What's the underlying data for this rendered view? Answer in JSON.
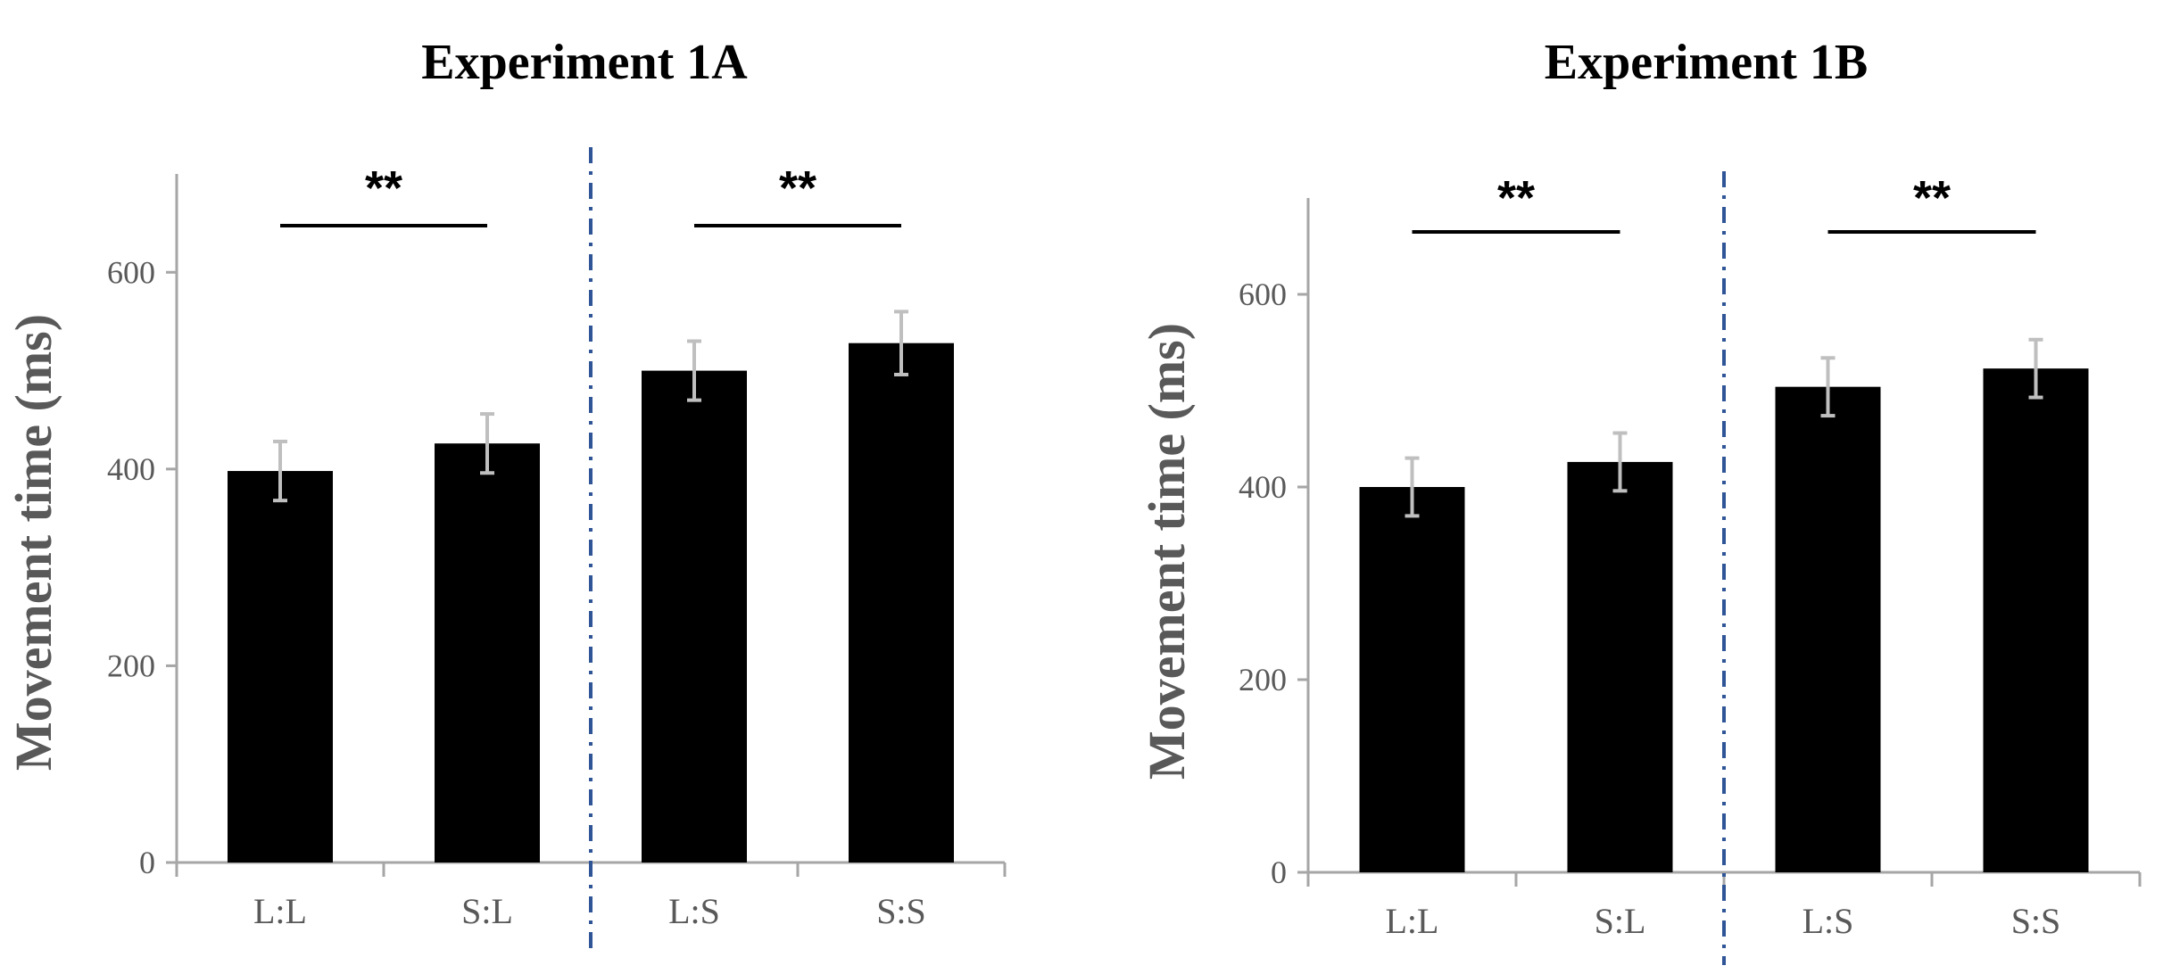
{
  "chart_data": [
    {
      "type": "bar",
      "title": "Experiment 1A",
      "ylabel": "Movement time (ms)",
      "xlabel": "",
      "ylim": [
        0,
        700
      ],
      "yticks": [
        0,
        200,
        400,
        600
      ],
      "categories": [
        "L:L",
        "S:L",
        "L:S",
        "S:S"
      ],
      "values": [
        398,
        426,
        500,
        528
      ],
      "errors": [
        30,
        30,
        30,
        32
      ],
      "bar_color": "#000000",
      "error_color": "#bfbfbf",
      "divider_color": "#2f5597",
      "significance": [
        {
          "from": 0,
          "to": 1,
          "label": "**"
        },
        {
          "from": 2,
          "to": 3,
          "label": "**"
        }
      ]
    },
    {
      "type": "bar",
      "title": "Experiment 1B",
      "ylabel": "Movement time (ms)",
      "xlabel": "",
      "ylim": [
        0,
        700
      ],
      "yticks": [
        0,
        200,
        400,
        600
      ],
      "categories": [
        "L:L",
        "S:L",
        "L:S",
        "S:S"
      ],
      "values": [
        400,
        426,
        504,
        523
      ],
      "errors": [
        30,
        30,
        30,
        30
      ],
      "bar_color": "#000000",
      "error_color": "#bfbfbf",
      "divider_color": "#2f5597",
      "significance": [
        {
          "from": 0,
          "to": 1,
          "label": "**"
        },
        {
          "from": 2,
          "to": 3,
          "label": "**"
        }
      ]
    }
  ]
}
